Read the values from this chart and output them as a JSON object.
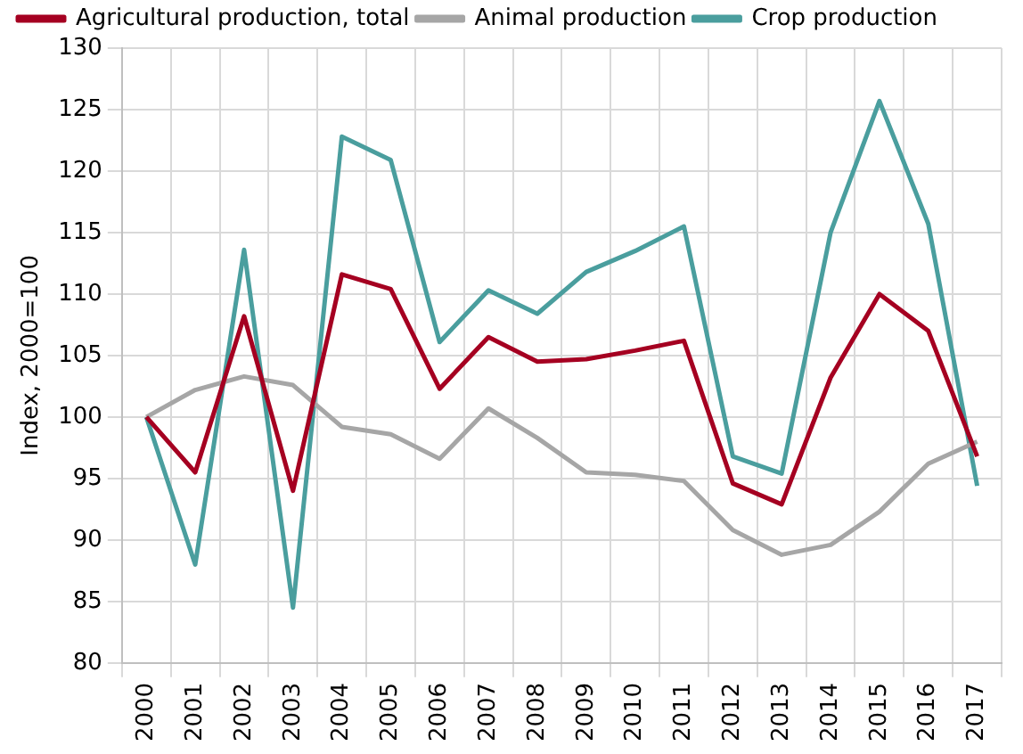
{
  "chart_data": {
    "type": "line",
    "ylabel": "Index, 2000=100",
    "categories": [
      "2000",
      "2001",
      "2002",
      "2003",
      "2004",
      "2005",
      "2006",
      "2007",
      "2008",
      "2009",
      "2010",
      "2011",
      "2012",
      "2013",
      "2014",
      "2015",
      "2016",
      "2017"
    ],
    "series": [
      {
        "name": "Agricultural production, total",
        "color": "#a50021",
        "values": [
          100,
          95.5,
          108.2,
          94,
          111.6,
          110.4,
          102.3,
          106.5,
          104.5,
          104.7,
          105.4,
          106.2,
          94.6,
          92.9,
          103.2,
          110,
          107,
          96.8
        ]
      },
      {
        "name": "Animal production",
        "color": "#a6a6a6",
        "values": [
          100,
          102.2,
          103.3,
          102.6,
          99.2,
          98.6,
          96.6,
          100.7,
          98.3,
          95.5,
          95.3,
          94.8,
          90.8,
          88.8,
          89.6,
          92.3,
          96.2,
          98
        ]
      },
      {
        "name": "Crop production",
        "color": "#4a9e9e",
        "values": [
          100,
          88,
          113.6,
          84.5,
          122.8,
          120.9,
          106.1,
          110.3,
          108.4,
          111.8,
          113.5,
          115.5,
          96.8,
          95.4,
          115,
          125.7,
          115.7,
          94.4
        ]
      }
    ],
    "ylim": [
      80,
      130
    ],
    "yticks": [
      80,
      85,
      90,
      95,
      100,
      105,
      110,
      115,
      120,
      125,
      130
    ],
    "grid": true,
    "legend": "top left",
    "marker": "none",
    "line_style": "solid"
  }
}
